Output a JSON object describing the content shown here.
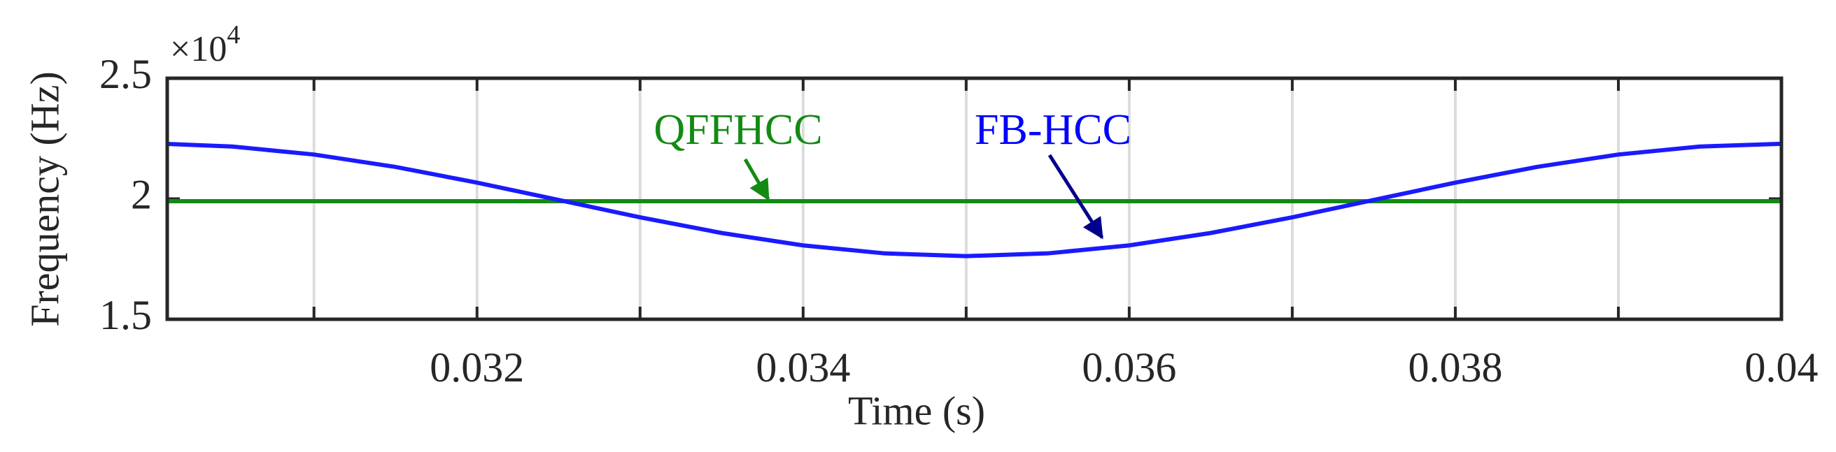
{
  "chart_data": {
    "type": "line",
    "xlabel": "Time (s)",
    "ylabel": "Frequency (Hz)",
    "y_exponent": "×10",
    "y_exponent_power": "4",
    "xlim": [
      0.0301,
      0.04
    ],
    "ylim": [
      15000,
      25000
    ],
    "xticks": [
      0.032,
      0.034,
      0.036,
      0.038,
      0.04
    ],
    "minor_xticks": [
      0.031,
      0.033,
      0.035,
      0.037,
      0.039
    ],
    "yticks": [
      {
        "value": 15000,
        "label": "1.5"
      },
      {
        "value": 20000,
        "label": "2"
      },
      {
        "value": 25000,
        "label": "2.5"
      }
    ],
    "xgrid": true,
    "x": [
      0.0301,
      0.0305,
      0.031,
      0.0315,
      0.032,
      0.0325,
      0.033,
      0.0335,
      0.034,
      0.0345,
      0.035,
      0.0355,
      0.036,
      0.0365,
      0.037,
      0.0375,
      0.038,
      0.0385,
      0.039,
      0.0395,
      0.04
    ],
    "series": [
      {
        "name": "QFFHCC",
        "color": "#138a13",
        "values": [
          19900,
          19900,
          19900,
          19900,
          19900,
          19900,
          19900,
          19900,
          19900,
          19900,
          19900,
          19900,
          19900,
          19900,
          19900,
          19900,
          19900,
          19900,
          19900,
          19900,
          19900
        ]
      },
      {
        "name": "FB-HCC",
        "color": "#1a1aff",
        "values": [
          22275,
          22166,
          21835,
          21320,
          20670,
          19950,
          19230,
          18580,
          18065,
          17734,
          17620,
          17734,
          18065,
          18580,
          19230,
          19950,
          20670,
          21320,
          21835,
          22166,
          22280
        ]
      }
    ]
  }
}
